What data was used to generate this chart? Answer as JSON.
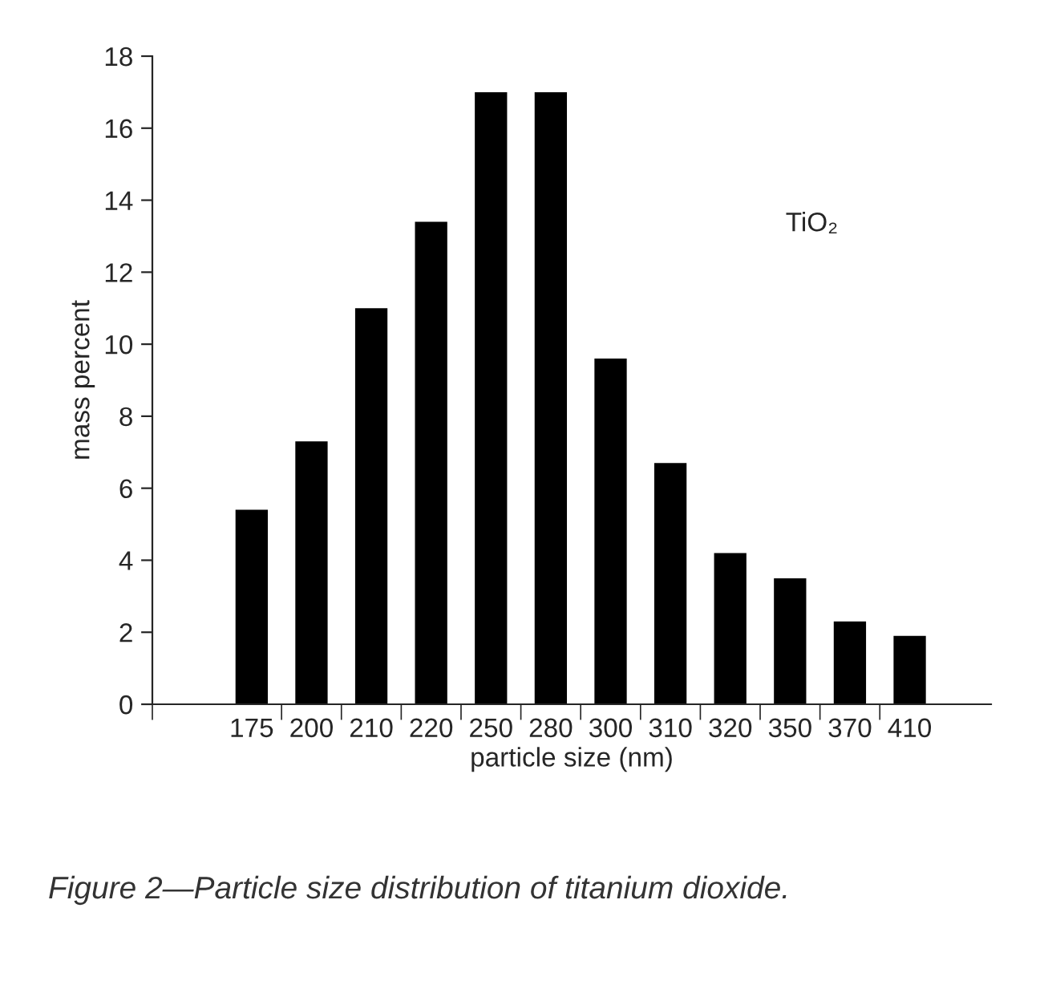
{
  "chart_data": {
    "type": "bar",
    "xlabel": "particle size (nm)",
    "ylabel": "mass percent",
    "categories": [
      "175",
      "200",
      "210",
      "220",
      "250",
      "280",
      "300",
      "310",
      "320",
      "350",
      "370",
      "410"
    ],
    "values": [
      5.4,
      7.3,
      11,
      13.4,
      17,
      17,
      9.6,
      6.7,
      4.2,
      3.5,
      2.3,
      1.9
    ],
    "color": "#000000",
    "ylim": [
      0,
      18
    ],
    "yticks": [
      0,
      2,
      4,
      6,
      8,
      10,
      12,
      14,
      16,
      18
    ],
    "grid": false,
    "legend": false,
    "annotations": [
      "TiO₂",
      "Figure 2—Particle size distribution of titanium dioxide."
    ]
  }
}
